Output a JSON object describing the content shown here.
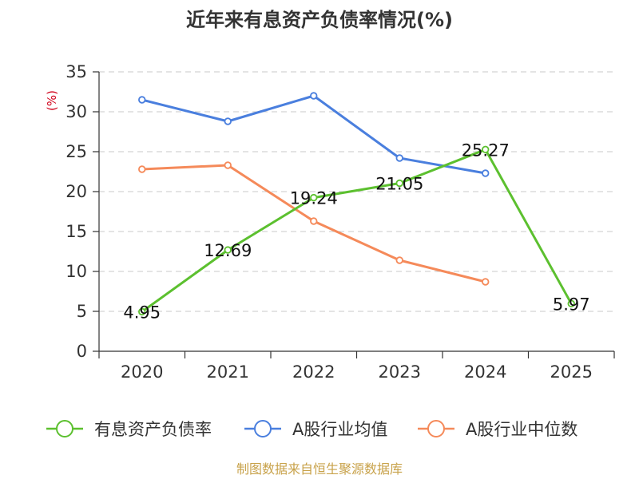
{
  "title": "近年来有息资产负债率情况(%)",
  "source": "制图数据来自恒生聚源数据库",
  "chart_data": {
    "type": "line",
    "title": "近年来有息资产负债率情况(%)",
    "xlabel": "",
    "ylabel": "(%)",
    "categories": [
      "2020",
      "2021",
      "2022",
      "2023",
      "2024",
      "2025"
    ],
    "ylim": [
      0,
      35
    ],
    "yticks": [
      0,
      5,
      10,
      15,
      20,
      25,
      30,
      35
    ],
    "grid": true,
    "legend_position": "bottom",
    "series": [
      {
        "name": "有息资产负债率",
        "color": "#5cc02f",
        "values": [
          4.95,
          12.69,
          19.24,
          21.05,
          25.27,
          5.97
        ],
        "labels": [
          "4.95",
          "12.69",
          "19.24",
          "21.05",
          "25.27",
          "5.97"
        ]
      },
      {
        "name": "A股行业均值",
        "color": "#4a7fde",
        "values": [
          31.5,
          28.8,
          32.0,
          24.2,
          22.3,
          null
        ]
      },
      {
        "name": "A股行业中位数",
        "color": "#f58a5a",
        "values": [
          22.8,
          23.3,
          16.3,
          11.4,
          8.7,
          null
        ]
      }
    ]
  }
}
